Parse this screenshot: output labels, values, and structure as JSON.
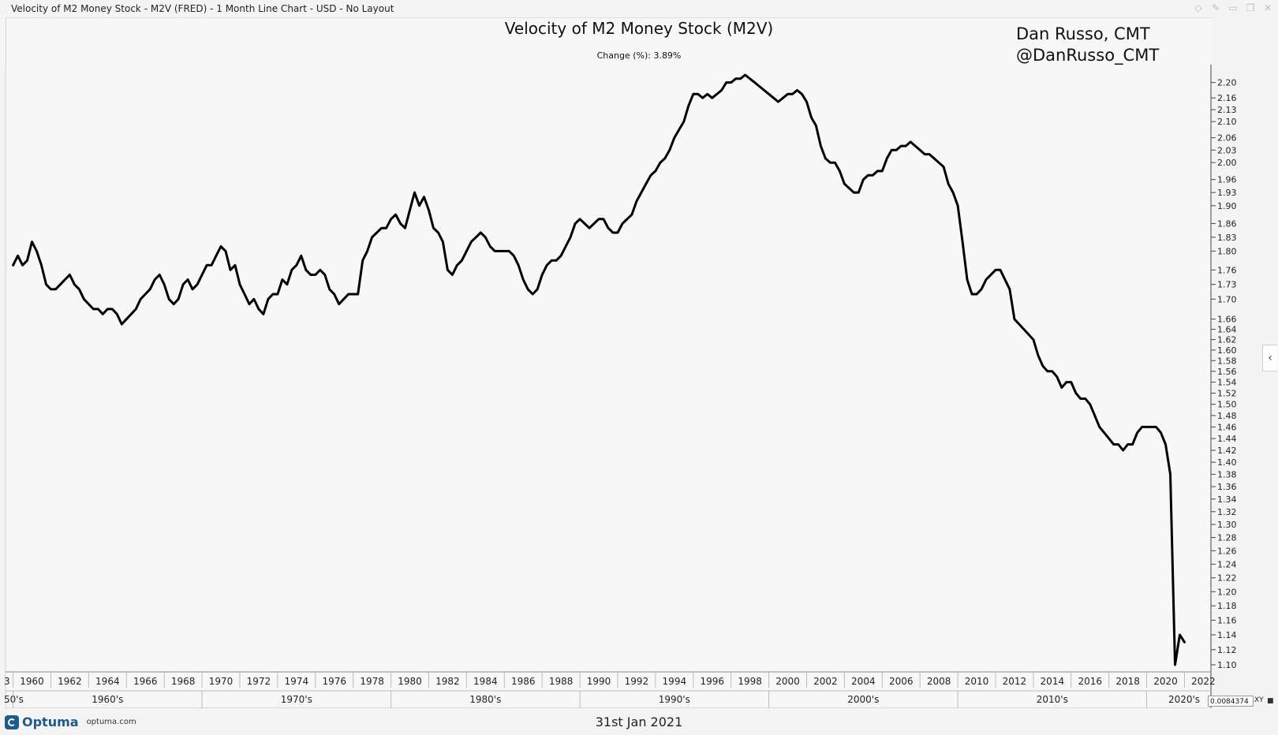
{
  "window": {
    "title": "Velocity of M2 Money Stock - M2V (FRED) - 1 Month Line Chart - USD - No Layout",
    "buttons": [
      {
        "name": "diamond-icon",
        "glyph": "◇"
      },
      {
        "name": "pin-icon",
        "glyph": "✎"
      },
      {
        "name": "minimize-icon",
        "glyph": "▭"
      },
      {
        "name": "restore-icon",
        "glyph": "❐"
      },
      {
        "name": "close-icon",
        "glyph": "✕"
      }
    ]
  },
  "header": {
    "title": "Velocity of M2 Money Stock (M2V)",
    "change": "Change (%): 3.89%",
    "author_line1": "Dan Russo, CMT",
    "author_line2": "@DanRusso_CMT"
  },
  "footer": {
    "logo_name": "Optuma",
    "logo_site": "optuma.com",
    "date": "31st Jan 2021",
    "zoom_value": "0.0084374",
    "xy_label": "XY",
    "side_arrow": "‹"
  },
  "colors": {
    "line": "#000000",
    "plot_bg": "#f7f7f7",
    "page_bg": "#f4f4f4",
    "logo": "#1f5a8c"
  },
  "chart_data": {
    "type": "line",
    "title": "Velocity of M2 Money Stock (M2V)",
    "xlabel": "",
    "ylabel": "",
    "y_scale": "log",
    "ylim": [
      1.1,
      2.22
    ],
    "xlim": [
      1958.6,
      2022.4
    ],
    "grid": false,
    "y_axis_position": "right",
    "y_ticks": [
      "2.20",
      "2.16",
      "2.13",
      "2.10",
      "2.06",
      "2.03",
      "2.00",
      "1.96",
      "1.93",
      "1.90",
      "1.86",
      "1.83",
      "1.80",
      "1.76",
      "1.73",
      "1.70",
      "1.66",
      "1.64",
      "1.62",
      "1.60",
      "1.58",
      "1.56",
      "1.54",
      "1.52",
      "1.50",
      "1.48",
      "1.46",
      "1.44",
      "1.42",
      "1.40",
      "1.38",
      "1.36",
      "1.34",
      "1.32",
      "1.30",
      "1.28",
      "1.26",
      "1.24",
      "1.22",
      "1.20",
      "1.18",
      "1.16",
      "1.14",
      "1.12",
      "1.10"
    ],
    "x_year_ticks": [
      "1960",
      "1962",
      "1964",
      "1966",
      "1968",
      "1970",
      "1972",
      "1974",
      "1976",
      "1978",
      "1980",
      "1982",
      "1984",
      "1986",
      "1988",
      "1990",
      "1992",
      "1994",
      "1996",
      "1998",
      "2000",
      "2002",
      "2004",
      "2006",
      "2008",
      "2010",
      "2012",
      "2014",
      "2016",
      "2018",
      "2020",
      "2022"
    ],
    "x_decade_labels": [
      "1960's",
      "1970's",
      "1980's",
      "1990's",
      "2000's",
      "2010's",
      "2020's"
    ],
    "x_first_label": "3",
    "x_decade_first_label": "50's",
    "series": [
      {
        "x": [
          1959.0,
          1959.25,
          1959.5,
          1959.75,
          1960.0,
          1960.25,
          1960.5,
          1960.75,
          1961.0,
          1961.25,
          1961.5,
          1961.75,
          1962.0,
          1962.25,
          1962.5,
          1962.75,
          1963.0,
          1963.25,
          1963.5,
          1963.75,
          1964.0,
          1964.25,
          1964.5,
          1964.75,
          1965.0,
          1965.25,
          1965.5,
          1965.75,
          1966.0,
          1966.25,
          1966.5,
          1966.75,
          1967.0,
          1967.25,
          1967.5,
          1967.75,
          1968.0,
          1968.25,
          1968.5,
          1968.75,
          1969.0,
          1969.25,
          1969.5,
          1969.75,
          1970.0,
          1970.25,
          1970.5,
          1970.75,
          1971.0,
          1971.25,
          1971.5,
          1971.75,
          1972.0,
          1972.25,
          1972.5,
          1972.75,
          1973.0,
          1973.25,
          1973.5,
          1973.75,
          1974.0,
          1974.25,
          1974.5,
          1974.75,
          1975.0,
          1975.25,
          1975.5,
          1975.75,
          1976.0,
          1976.25,
          1976.5,
          1976.75,
          1977.0,
          1977.25,
          1977.5,
          1977.75,
          1978.0,
          1978.25,
          1978.5,
          1978.75,
          1979.0,
          1979.25,
          1979.5,
          1979.75,
          1980.0,
          1980.25,
          1980.5,
          1980.75,
          1981.0,
          1981.25,
          1981.5,
          1981.75,
          1982.0,
          1982.25,
          1982.5,
          1982.75,
          1983.0,
          1983.25,
          1983.5,
          1983.75,
          1984.0,
          1984.25,
          1984.5,
          1984.75,
          1985.0,
          1985.25,
          1985.5,
          1985.75,
          1986.0,
          1986.25,
          1986.5,
          1986.75,
          1987.0,
          1987.25,
          1987.5,
          1987.75,
          1988.0,
          1988.25,
          1988.5,
          1988.75,
          1989.0,
          1989.25,
          1989.5,
          1989.75,
          1990.0,
          1990.25,
          1990.5,
          1990.75,
          1991.0,
          1991.25,
          1991.5,
          1991.75,
          1992.0,
          1992.25,
          1992.5,
          1992.75,
          1993.0,
          1993.25,
          1993.5,
          1993.75,
          1994.0,
          1994.25,
          1994.5,
          1994.75,
          1995.0,
          1995.25,
          1995.5,
          1995.75,
          1996.0,
          1996.25,
          1996.5,
          1996.75,
          1997.0,
          1997.25,
          1997.5,
          1997.75,
          1998.0,
          1998.25,
          1998.5,
          1998.75,
          1999.0,
          1999.25,
          1999.5,
          1999.75,
          2000.0,
          2000.25,
          2000.5,
          2000.75,
          2001.0,
          2001.25,
          2001.5,
          2001.75,
          2002.0,
          2002.25,
          2002.5,
          2002.75,
          2003.0,
          2003.25,
          2003.5,
          2003.75,
          2004.0,
          2004.25,
          2004.5,
          2004.75,
          2005.0,
          2005.25,
          2005.5,
          2005.75,
          2006.0,
          2006.25,
          2006.5,
          2006.75,
          2007.0,
          2007.25,
          2007.5,
          2007.75,
          2008.0,
          2008.25,
          2008.5,
          2008.75,
          2009.0,
          2009.25,
          2009.5,
          2009.75,
          2010.0,
          2010.25,
          2010.5,
          2010.75,
          2011.0,
          2011.25,
          2011.5,
          2011.75,
          2012.0,
          2012.25,
          2012.5,
          2012.75,
          2013.0,
          2013.25,
          2013.5,
          2013.75,
          2014.0,
          2014.25,
          2014.5,
          2014.75,
          2015.0,
          2015.25,
          2015.5,
          2015.75,
          2016.0,
          2016.25,
          2016.5,
          2016.75,
          2017.0,
          2017.25,
          2017.5,
          2017.75,
          2018.0,
          2018.25,
          2018.5,
          2018.75,
          2019.0,
          2019.25,
          2019.5,
          2019.75,
          2020.0,
          2020.25,
          2020.5,
          2020.75,
          2021.0
        ],
        "values": [
          1.77,
          1.79,
          1.77,
          1.78,
          1.82,
          1.8,
          1.77,
          1.73,
          1.72,
          1.72,
          1.73,
          1.74,
          1.75,
          1.73,
          1.72,
          1.7,
          1.69,
          1.68,
          1.68,
          1.67,
          1.68,
          1.68,
          1.67,
          1.65,
          1.66,
          1.67,
          1.68,
          1.7,
          1.71,
          1.72,
          1.74,
          1.75,
          1.73,
          1.7,
          1.69,
          1.7,
          1.73,
          1.74,
          1.72,
          1.73,
          1.75,
          1.77,
          1.77,
          1.79,
          1.81,
          1.8,
          1.76,
          1.77,
          1.73,
          1.71,
          1.69,
          1.7,
          1.68,
          1.67,
          1.7,
          1.71,
          1.71,
          1.74,
          1.73,
          1.76,
          1.77,
          1.79,
          1.76,
          1.75,
          1.75,
          1.76,
          1.75,
          1.72,
          1.71,
          1.69,
          1.7,
          1.71,
          1.71,
          1.71,
          1.78,
          1.8,
          1.83,
          1.84,
          1.85,
          1.85,
          1.87,
          1.88,
          1.86,
          1.85,
          1.89,
          1.93,
          1.9,
          1.92,
          1.89,
          1.85,
          1.84,
          1.82,
          1.76,
          1.75,
          1.77,
          1.78,
          1.8,
          1.82,
          1.83,
          1.84,
          1.83,
          1.81,
          1.8,
          1.8,
          1.8,
          1.8,
          1.79,
          1.77,
          1.74,
          1.72,
          1.71,
          1.72,
          1.75,
          1.77,
          1.78,
          1.78,
          1.79,
          1.81,
          1.83,
          1.86,
          1.87,
          1.86,
          1.85,
          1.86,
          1.87,
          1.87,
          1.85,
          1.84,
          1.84,
          1.86,
          1.87,
          1.88,
          1.91,
          1.93,
          1.95,
          1.97,
          1.98,
          2.0,
          2.01,
          2.03,
          2.06,
          2.08,
          2.1,
          2.14,
          2.17,
          2.17,
          2.16,
          2.17,
          2.16,
          2.17,
          2.18,
          2.2,
          2.2,
          2.21,
          2.21,
          2.22,
          2.21,
          2.2,
          2.19,
          2.18,
          2.17,
          2.16,
          2.15,
          2.16,
          2.17,
          2.17,
          2.18,
          2.17,
          2.15,
          2.11,
          2.09,
          2.04,
          2.01,
          2.0,
          2.0,
          1.98,
          1.95,
          1.94,
          1.93,
          1.93,
          1.96,
          1.97,
          1.97,
          1.98,
          1.98,
          2.01,
          2.03,
          2.03,
          2.04,
          2.04,
          2.05,
          2.04,
          2.03,
          2.02,
          2.02,
          2.01,
          2.0,
          1.99,
          1.95,
          1.93,
          1.9,
          1.82,
          1.74,
          1.71,
          1.71,
          1.72,
          1.74,
          1.75,
          1.76,
          1.76,
          1.74,
          1.72,
          1.66,
          1.65,
          1.64,
          1.63,
          1.62,
          1.59,
          1.57,
          1.56,
          1.56,
          1.55,
          1.53,
          1.54,
          1.54,
          1.52,
          1.51,
          1.51,
          1.5,
          1.48,
          1.46,
          1.45,
          1.44,
          1.43,
          1.43,
          1.42,
          1.43,
          1.43,
          1.45,
          1.46,
          1.46,
          1.46,
          1.46,
          1.45,
          1.43,
          1.38,
          1.1,
          1.14,
          1.13
        ]
      }
    ]
  }
}
